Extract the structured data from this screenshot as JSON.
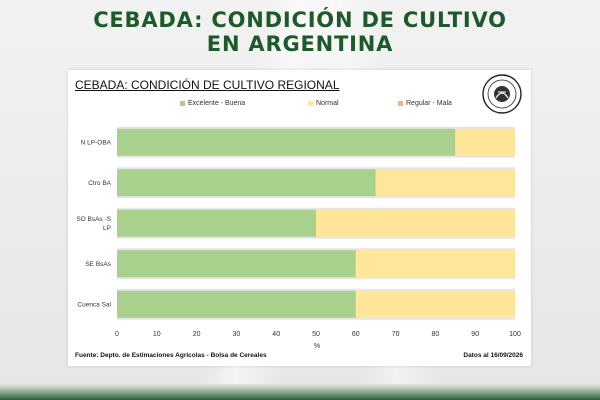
{
  "headline": {
    "line1": "CEBADA: CONDICIÓN DE CULTIVO",
    "line2": "EN ARGENTINA"
  },
  "colors": {
    "headline": "#1d5a2a",
    "excelente_buena": "#a9d18e",
    "normal": "#ffe699",
    "regular_mala": "#f4b183",
    "band": "#e6e6e6"
  },
  "logo": {
    "text": "Bolsa de Cereales",
    "icon": "bolsa-de-cereales-seal-icon"
  },
  "footer": {
    "source": "Fuente: Depto. de Estimaciones Agrícolas - Bolsa de Cereales",
    "date": "Datos al 16/09/2026"
  },
  "chart_data": {
    "type": "bar",
    "orientation": "horizontal",
    "stacked": true,
    "title": "CEBADA: CONDICIÓN DE CULTIVO REGIONAL",
    "xlabel": "%",
    "ylabel": "",
    "xlim": [
      0,
      100
    ],
    "xticks": [
      0,
      10,
      20,
      30,
      40,
      50,
      60,
      70,
      80,
      90,
      100
    ],
    "categories": [
      "N LP-OBA",
      "Ctro BA",
      "SO BsAs -S LP",
      "SE BsAs",
      "Cuenca Sal"
    ],
    "category_lines": [
      [
        "N LP-OBA"
      ],
      [
        "Ctro BA"
      ],
      [
        "SO BsAs -S",
        "LP"
      ],
      [
        "SE BsAs"
      ],
      [
        "Cuenca Sal"
      ]
    ],
    "legend_position": "top",
    "grid": false,
    "series": [
      {
        "name": "Excelente - Buena",
        "values": [
          85,
          65,
          50,
          60,
          60
        ]
      },
      {
        "name": "Normal",
        "values": [
          15,
          35,
          50,
          40,
          40
        ]
      },
      {
        "name": "Regular - Mala",
        "values": [
          0,
          0,
          0,
          0,
          0
        ]
      }
    ]
  }
}
